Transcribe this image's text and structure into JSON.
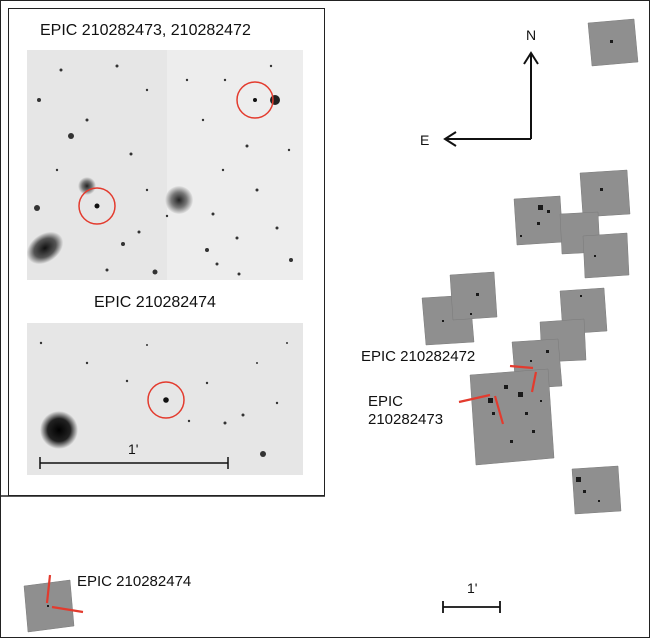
{
  "inset_top": {
    "title": "EPIC 210282473, 210282472"
  },
  "inset_bottom": {
    "title": "EPIC 210282474",
    "scale_label": "1'"
  },
  "compass": {
    "north": "N",
    "east": "E"
  },
  "field_labels": {
    "target_472": "EPIC 210282472",
    "target_473_line1": "EPIC",
    "target_473_line2": "210282473",
    "target_474": "EPIC 210282474"
  },
  "main_scale_label": "1'",
  "colors": {
    "marker": "#e33b2e",
    "frame": "#222222",
    "tile": "#8f8f8f"
  }
}
